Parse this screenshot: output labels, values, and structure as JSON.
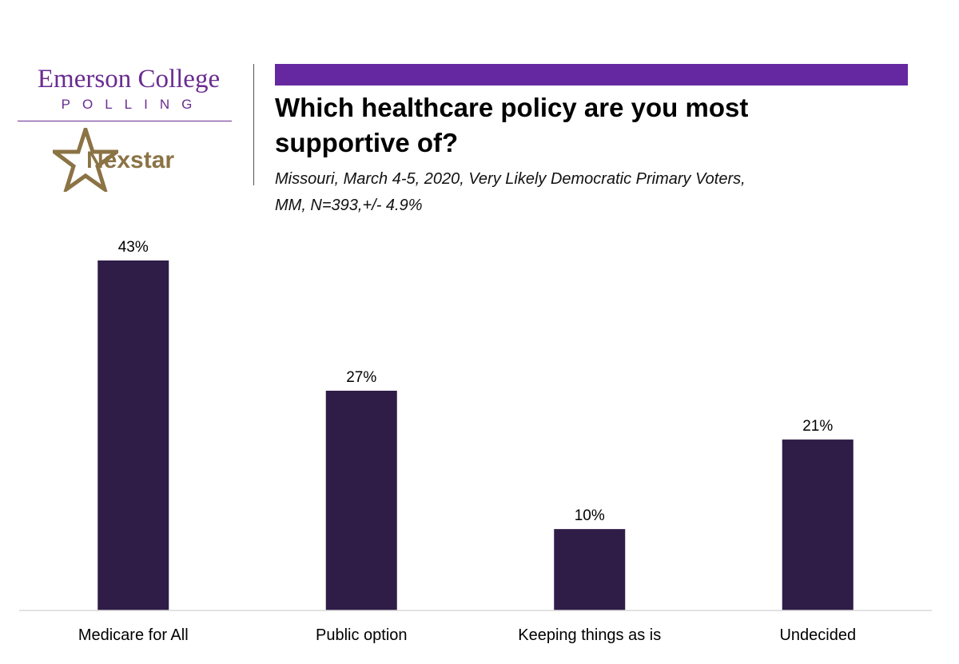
{
  "header": {
    "brand_name": "Emerson College",
    "brand_sub": "POLLING",
    "partner_name": "Nexstar",
    "accent_color": "#6528a0",
    "brand_color": "#6a2c91",
    "partner_color": "#8b7345",
    "partner_icon": "star-icon"
  },
  "chart_data": {
    "type": "bar",
    "title": "Which healthcare policy are you most supportive of?",
    "subtitle_line1": "Missouri, March 4-5, 2020, Very Likely Democratic Primary Voters,",
    "subtitle_line2": "MM,  N=393,+/-  4.9%",
    "categories": [
      "Medicare for All",
      "Public option",
      "Keeping things as is",
      "Undecided"
    ],
    "values": [
      43,
      27,
      10,
      21
    ],
    "value_labels": [
      "43%",
      "27%",
      "10%",
      "21%"
    ],
    "unit": "%",
    "bar_color": "#2f1c47",
    "ylim": [
      0,
      43
    ],
    "grid": false,
    "xlabel": "",
    "ylabel": ""
  }
}
